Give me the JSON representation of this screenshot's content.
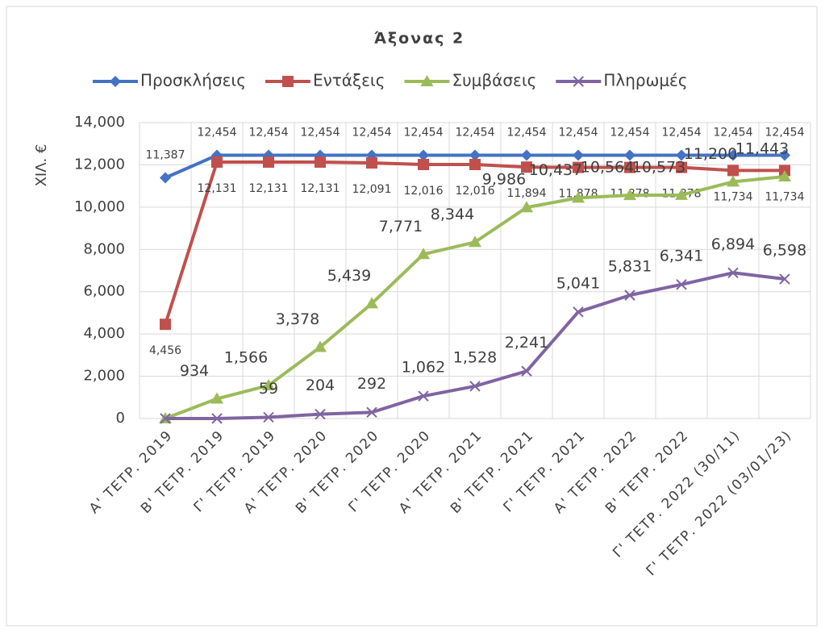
{
  "chart_data": {
    "type": "line",
    "title": "Άξονας 2",
    "y_label": "ΧΙΛ. €",
    "categories": [
      "Α' ΤΕΤΡ. 2019",
      "Β' ΤΕΤΡ. 2019",
      "Γ' ΤΕΤΡ. 2019",
      "Α' ΤΕΤΡ. 2020",
      "Β' ΤΕΤΡ. 2020",
      "Γ' ΤΕΤΡ. 2020",
      "Α' ΤΕΤΡ. 2021",
      "Β' ΤΕΤΡ. 2021",
      "Γ' ΤΕΤΡ. 2021",
      "Α' ΤΕΤΡ. 2022",
      "Β' ΤΕΤΡ. 2022",
      "Γ' ΤΕΤΡ. 2022 (30/11)",
      "Γ' ΤΕΤΡ. 2022 (03/01/23)"
    ],
    "series": [
      {
        "name": "Προσκλήσεις",
        "color": "#4472c4",
        "marker": "diamond",
        "values": [
          11387,
          12454,
          12454,
          12454,
          12454,
          12454,
          12454,
          12454,
          12454,
          12454,
          12454,
          12454,
          12454
        ],
        "value_labels": [
          "11,387",
          "12,454",
          "12,454",
          "12,454",
          "12,454",
          "12,454",
          "12,454",
          "12,454",
          "12,454",
          "12,454",
          "12,454",
          "12,454",
          "12,454"
        ]
      },
      {
        "name": "Εντάξεις",
        "color": "#c0504d",
        "marker": "square",
        "values": [
          4456,
          12131,
          12131,
          12131,
          12091,
          12016,
          12016,
          11894,
          11878,
          11878,
          11878,
          11734,
          11734
        ],
        "value_labels": [
          "4,456",
          "12,131",
          "12,131",
          "12,131",
          "12,091",
          "12,016",
          "12,016",
          "11,894",
          "11,878",
          "11,878",
          "11,878",
          "11,734",
          "11,734"
        ]
      },
      {
        "name": "Συμβάσεις",
        "color": "#9bbb59",
        "marker": "triangle",
        "values": [
          0,
          934,
          1566,
          3378,
          5439,
          7771,
          8344,
          9986,
          10437,
          10564,
          10573,
          11200,
          11443
        ],
        "value_labels": [
          null,
          "934",
          "1,566",
          "3,378",
          "5,439",
          "7,771",
          "8,344",
          "9,986",
          "10,437",
          "10,564",
          "10,573",
          "11,200",
          "11,443"
        ]
      },
      {
        "name": "Πληρωμές",
        "color": "#8064a2",
        "marker": "x",
        "values": [
          0,
          0,
          59,
          204,
          292,
          1062,
          1528,
          2241,
          5041,
          5831,
          6341,
          6894,
          6598
        ],
        "value_labels": [
          null,
          null,
          "59",
          "204",
          "292",
          "1,062",
          "1,528",
          "2,241",
          "5,041",
          "5,831",
          "6,341",
          "6,894",
          "6,598"
        ]
      }
    ],
    "ylim": [
      0,
      14000
    ],
    "yticks": [
      0,
      {
        "value": 2000,
        "label": "2,000"
      },
      {
        "value": 4000,
        "label": "4,000"
      },
      {
        "value": 6000,
        "label": "6,000"
      },
      {
        "value": 8000,
        "label": "8,000"
      },
      {
        "value": 10000,
        "label": "10,000"
      },
      {
        "value": 12000,
        "label": "12,000"
      },
      {
        "value": 14000,
        "label": "14,000"
      }
    ],
    "grid": true,
    "legend": "top"
  }
}
